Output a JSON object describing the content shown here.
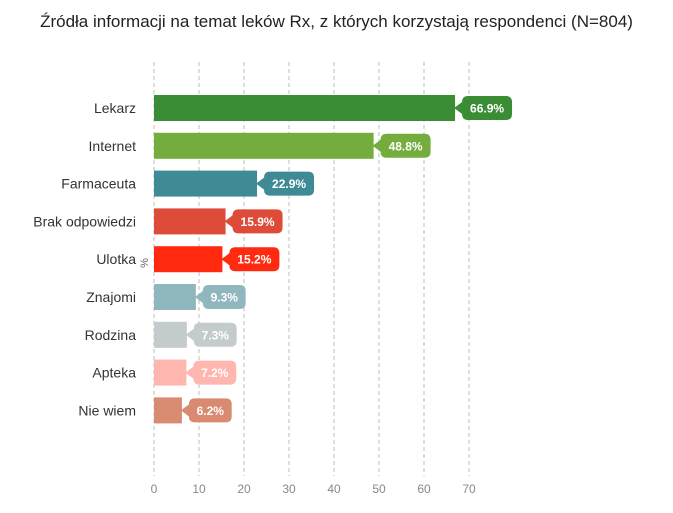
{
  "chart_data": {
    "type": "bar",
    "orientation": "horizontal",
    "title": "Źródła informacji na temat leków Rx, z których korzystają respondenci (N=804)",
    "xlabel": "%",
    "ylabel": "",
    "xlim": [
      0,
      70
    ],
    "ticks": [
      0,
      10,
      20,
      30,
      40,
      50,
      60,
      70
    ],
    "grid": "vertical dashed",
    "categories": [
      "Lekarz",
      "Internet",
      "Farmaceuta",
      "Brak odpowiedzi",
      "Ulotka",
      "Znajomi",
      "Rodzina",
      "Apteka",
      "Nie wiem"
    ],
    "values": [
      66.9,
      48.8,
      22.9,
      15.9,
      15.2,
      9.3,
      7.3,
      7.2,
      6.2
    ],
    "data_labels": [
      "66.9%",
      "48.8%",
      "22.9%",
      "15.9%",
      "15.2%",
      "9.3%",
      "7.3%",
      "7.2%",
      "6.2%"
    ],
    "colors": [
      "#3a8d35",
      "#74ad3e",
      "#3f8b95",
      "#de4b38",
      "#ff2a10",
      "#8fb7bd",
      "#c3cbcd",
      "#ffb6ae",
      "#d88b70"
    ]
  }
}
